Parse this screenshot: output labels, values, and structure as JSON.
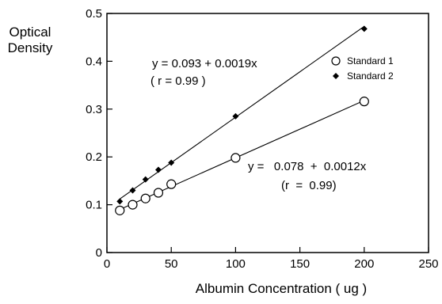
{
  "chart_data": {
    "type": "scatter",
    "title": "",
    "xlabel": "Albumin Concentration ( ug )",
    "ylabel_line1": "Optical",
    "ylabel_line2": "Density",
    "xlim": [
      0,
      250
    ],
    "ylim": [
      0,
      0.5
    ],
    "xticks": [
      "0",
      "50",
      "100",
      "150",
      "200",
      "250"
    ],
    "yticks": [
      "0",
      "0.1",
      "0.2",
      "0.3",
      "0.4",
      "0.5"
    ],
    "grid": false,
    "legend_position": "top-right",
    "series": [
      {
        "name": "Standard 1",
        "marker": "open-circle",
        "x": [
          10,
          20,
          30,
          40,
          50,
          100,
          200
        ],
        "y": [
          0.088,
          0.1,
          0.113,
          0.125,
          0.143,
          0.198,
          0.316
        ],
        "fit": {
          "intercept": 0.078,
          "slope": 0.0012
        }
      },
      {
        "name": "Standard 2",
        "marker": "filled-diamond",
        "x": [
          10,
          20,
          30,
          40,
          50,
          100,
          200
        ],
        "y": [
          0.107,
          0.13,
          0.153,
          0.173,
          0.188,
          0.285,
          0.468
        ],
        "fit": {
          "intercept": 0.093,
          "slope": 0.0019
        }
      }
    ],
    "annotations": {
      "eq2_line1": "y = 0.093 + 0.0019x",
      "eq2_line2": "( r = 0.99 )",
      "eq1_line1": "y =   0.078  +  0.0012x",
      "eq1_line2": "(r  =  0.99)"
    }
  }
}
